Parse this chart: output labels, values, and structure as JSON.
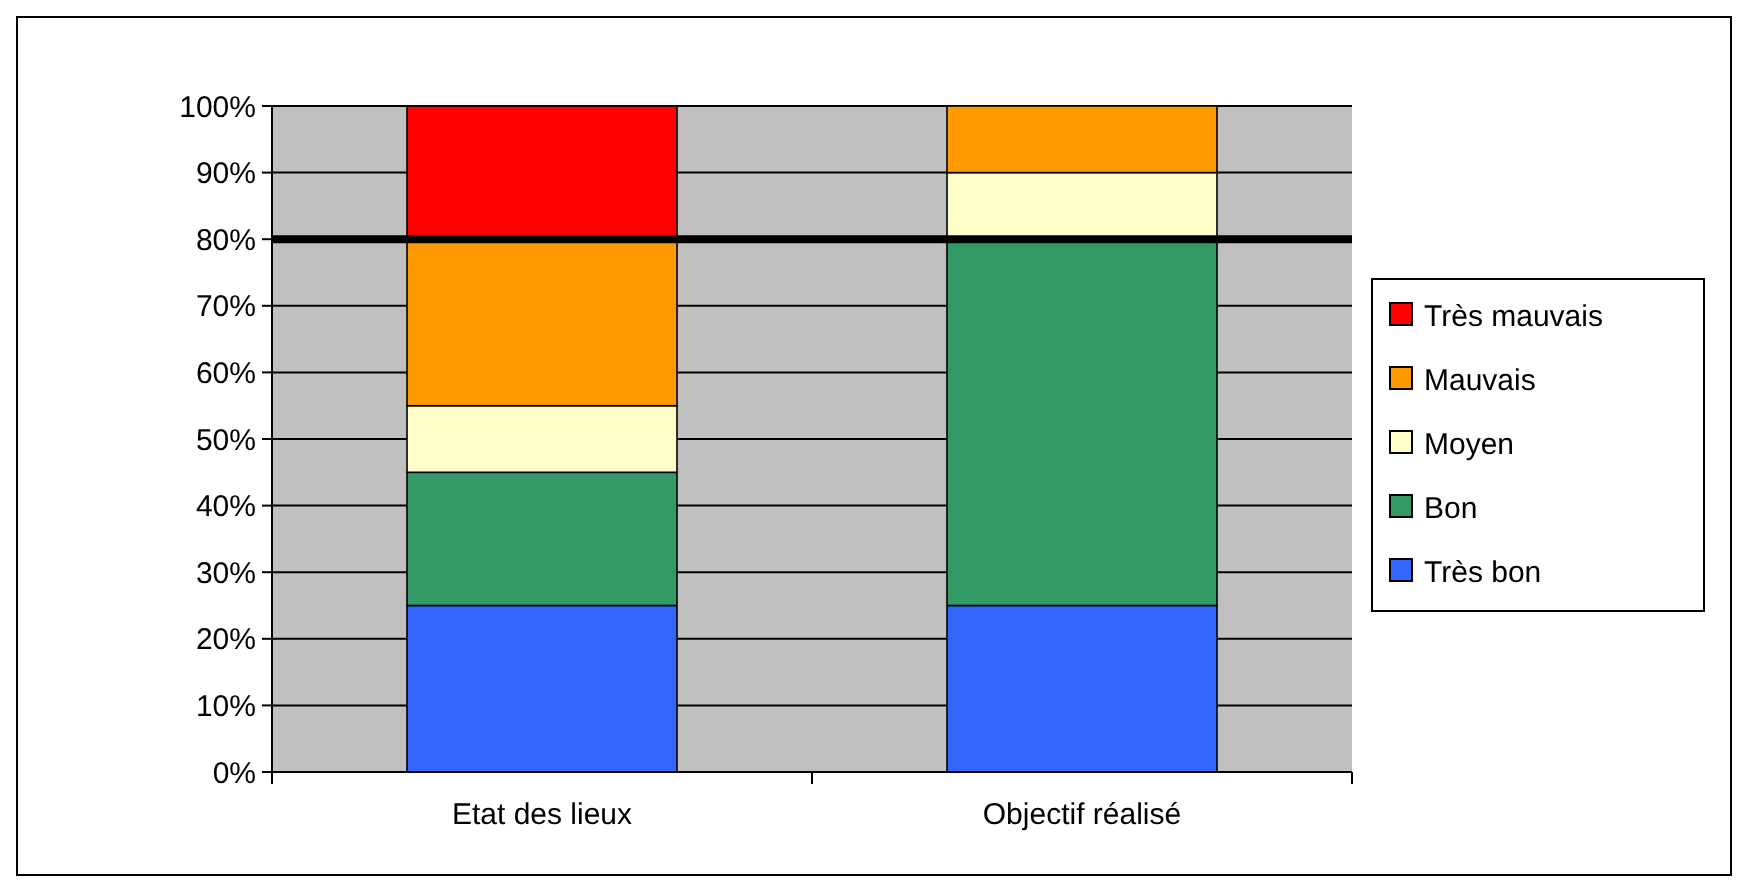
{
  "chart_data": {
    "type": "bar",
    "stacked": true,
    "categories": [
      "Etat des lieux",
      "Objectif réalisé"
    ],
    "series": [
      {
        "name": "Très bon",
        "color": "#3366ff",
        "values": [
          25,
          25
        ]
      },
      {
        "name": "Bon",
        "color": "#339966",
        "values": [
          20,
          55
        ]
      },
      {
        "name": "Moyen",
        "color": "#ffffcc",
        "values": [
          10,
          10
        ]
      },
      {
        "name": "Mauvais",
        "color": "#ff9900",
        "values": [
          25,
          10
        ]
      },
      {
        "name": "Très mauvais",
        "color": "#ff0000",
        "values": [
          20,
          0
        ]
      }
    ],
    "ylim": [
      0,
      100
    ],
    "yticks": [
      {
        "value": 0,
        "label": "0%"
      },
      {
        "value": 10,
        "label": "10%"
      },
      {
        "value": 20,
        "label": "20%"
      },
      {
        "value": 30,
        "label": "30%"
      },
      {
        "value": 40,
        "label": "40%"
      },
      {
        "value": 50,
        "label": "50%"
      },
      {
        "value": 60,
        "label": "60%"
      },
      {
        "value": 70,
        "label": "70%"
      },
      {
        "value": 80,
        "label": "80%"
      },
      {
        "value": 90,
        "label": "90%"
      },
      {
        "value": 100,
        "label": "100%"
      }
    ],
    "ref_lines": [
      {
        "axis": "y",
        "value": 80,
        "color": "#000000"
      }
    ],
    "grid": "y",
    "legend": "right"
  }
}
